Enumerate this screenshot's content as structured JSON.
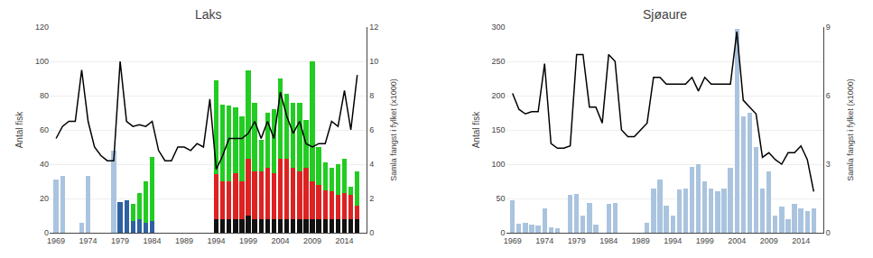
{
  "chart_data": [
    {
      "type": "bar",
      "title": "Laks",
      "stacked": true,
      "grid": true,
      "x": [
        1969,
        1970,
        1971,
        1972,
        1973,
        1974,
        1975,
        1976,
        1977,
        1978,
        1979,
        1980,
        1981,
        1982,
        1983,
        1984,
        1985,
        1986,
        1987,
        1988,
        1989,
        1990,
        1991,
        1992,
        1993,
        1994,
        1995,
        1996,
        1997,
        1998,
        1999,
        2000,
        2001,
        2002,
        2003,
        2004,
        2005,
        2006,
        2007,
        2008,
        2009,
        2010,
        2011,
        2012,
        2013,
        2014,
        2015,
        2016
      ],
      "xlim": [
        1968,
        2017.5
      ],
      "xticks": [
        1969,
        1974,
        1979,
        1984,
        1989,
        1994,
        1999,
        2004,
        2009,
        2014
      ],
      "ylabel": "Antal fisk",
      "ylim": [
        0,
        120
      ],
      "yticks": [
        0,
        20,
        40,
        60,
        80,
        100,
        120
      ],
      "y2label": "Samla fangst i fylket (x1000)",
      "y2lim": [
        0,
        12
      ],
      "y2ticks": [
        0,
        2,
        4,
        6,
        8,
        10,
        12
      ],
      "series": [
        {
          "color": "#aac4df",
          "values": [
            31,
            33,
            0,
            0,
            6,
            33,
            0,
            0,
            0,
            48,
            0,
            0,
            0,
            0,
            0,
            0,
            0,
            0,
            0,
            0,
            0,
            0,
            0,
            0,
            0,
            0,
            0,
            0,
            0,
            0,
            0,
            0,
            0,
            0,
            0,
            0,
            0,
            0,
            0,
            0,
            0,
            0,
            0,
            0,
            0,
            0,
            0,
            0
          ]
        },
        {
          "color": "#3060a0",
          "values": [
            0,
            0,
            0,
            0,
            0,
            0,
            0,
            0,
            0,
            0,
            18,
            19,
            7,
            8,
            6,
            7,
            0,
            0,
            0,
            0,
            0,
            0,
            0,
            0,
            0,
            0,
            0,
            0,
            0,
            0,
            0,
            0,
            0,
            0,
            0,
            0,
            0,
            0,
            0,
            0,
            0,
            0,
            0,
            0,
            0,
            0,
            0,
            0
          ]
        },
        {
          "color": "#22cc22",
          "values": [
            0,
            0,
            0,
            0,
            0,
            0,
            0,
            0,
            0,
            0,
            0,
            0,
            10,
            15,
            24,
            37,
            0,
            0,
            0,
            0,
            0,
            0,
            0,
            0,
            0,
            0,
            0,
            0,
            0,
            0,
            0,
            0,
            0,
            0,
            0,
            0,
            0,
            0,
            0,
            0,
            0,
            0,
            0,
            0,
            0,
            0,
            0,
            0
          ]
        },
        {
          "color": "#111111",
          "values": [
            0,
            0,
            0,
            0,
            0,
            0,
            0,
            0,
            0,
            0,
            0,
            0,
            0,
            0,
            0,
            0,
            0,
            0,
            0,
            0,
            0,
            0,
            0,
            0,
            0,
            8,
            8,
            8,
            8,
            8,
            10,
            8,
            8,
            8,
            8,
            8,
            8,
            8,
            8,
            8,
            8,
            8,
            8,
            8,
            8,
            8,
            8,
            8
          ]
        },
        {
          "color": "#dd2222",
          "values": [
            0,
            0,
            0,
            0,
            0,
            0,
            0,
            0,
            0,
            0,
            0,
            0,
            0,
            0,
            0,
            0,
            0,
            0,
            0,
            0,
            0,
            0,
            0,
            0,
            0,
            26,
            22,
            22,
            27,
            22,
            33,
            28,
            28,
            30,
            27,
            35,
            35,
            30,
            28,
            30,
            22,
            20,
            17,
            16,
            14,
            15,
            14,
            8
          ]
        },
        {
          "color": "#22cc22",
          "values": [
            0,
            0,
            0,
            0,
            0,
            0,
            0,
            0,
            0,
            0,
            0,
            0,
            0,
            0,
            0,
            0,
            0,
            0,
            0,
            0,
            0,
            0,
            0,
            0,
            0,
            55,
            45,
            44,
            38,
            38,
            52,
            40,
            18,
            32,
            37,
            47,
            38,
            38,
            40,
            28,
            70,
            22,
            16,
            14,
            18,
            20,
            5,
            20
          ]
        },
        {
          "type": "line",
          "axis": "y2",
          "color": "#000000",
          "values": [
            5.5,
            6.2,
            6.5,
            6.5,
            9.5,
            6.5,
            5.0,
            4.5,
            4.2,
            4.2,
            10.0,
            6.5,
            6.2,
            6.3,
            6.2,
            6.5,
            4.8,
            4.2,
            4.2,
            5.0,
            5.0,
            4.8,
            5.2,
            5.0,
            7.8,
            3.7,
            4.5,
            5.5,
            5.5,
            5.5,
            5.8,
            6.5,
            5.5,
            6.5,
            5.5,
            8.2,
            6.8,
            5.8,
            6.5,
            5.2,
            5.0,
            5.2,
            5.2,
            6.5,
            6.2,
            8.3,
            6.0,
            9.2
          ]
        }
      ]
    },
    {
      "type": "bar",
      "title": "Sjøaure",
      "grid": true,
      "x": [
        1969,
        1970,
        1971,
        1972,
        1973,
        1974,
        1975,
        1976,
        1977,
        1978,
        1979,
        1980,
        1981,
        1982,
        1983,
        1984,
        1985,
        1986,
        1987,
        1988,
        1989,
        1990,
        1991,
        1992,
        1993,
        1994,
        1995,
        1996,
        1997,
        1998,
        1999,
        2000,
        2001,
        2002,
        2003,
        2004,
        2005,
        2006,
        2007,
        2008,
        2009,
        2010,
        2011,
        2012,
        2013,
        2014,
        2015,
        2016
      ],
      "xlim": [
        1968,
        2017.5
      ],
      "xticks": [
        1969,
        1974,
        1979,
        1984,
        1989,
        1994,
        1999,
        2004,
        2009,
        2014
      ],
      "ylabel": "Antal fisk",
      "ylim": [
        0,
        300
      ],
      "yticks": [
        0,
        50,
        100,
        150,
        200,
        250,
        300
      ],
      "y2label": "Samla fangst i fylket (x1000)",
      "y2lim": [
        0,
        9
      ],
      "y2ticks": [
        0,
        3,
        6,
        9
      ],
      "series": [
        {
          "color": "#aac4df",
          "values": [
            48,
            13,
            15,
            12,
            10,
            36,
            8,
            6,
            0,
            55,
            57,
            25,
            43,
            12,
            0,
            42,
            44,
            0,
            0,
            0,
            0,
            15,
            65,
            77,
            40,
            25,
            63,
            65,
            96,
            100,
            75,
            64,
            61,
            65,
            95,
            298,
            170,
            175,
            125,
            65,
            90,
            25,
            38,
            20,
            42,
            35,
            32,
            36
          ]
        },
        {
          "type": "line",
          "axis": "y2",
          "color": "#000000",
          "values": [
            6.1,
            5.4,
            5.2,
            5.3,
            5.3,
            7.4,
            3.9,
            3.7,
            3.7,
            3.8,
            7.8,
            7.8,
            5.5,
            5.5,
            4.8,
            7.8,
            7.5,
            4.5,
            4.2,
            4.2,
            4.5,
            4.8,
            6.8,
            6.8,
            6.5,
            6.5,
            6.5,
            6.5,
            6.8,
            6.2,
            6.8,
            6.5,
            6.5,
            6.5,
            6.5,
            8.8,
            5.8,
            5.5,
            5.2,
            3.3,
            3.5,
            3.2,
            3.0,
            3.5,
            3.5,
            3.8,
            3.2,
            1.8
          ]
        }
      ]
    }
  ]
}
